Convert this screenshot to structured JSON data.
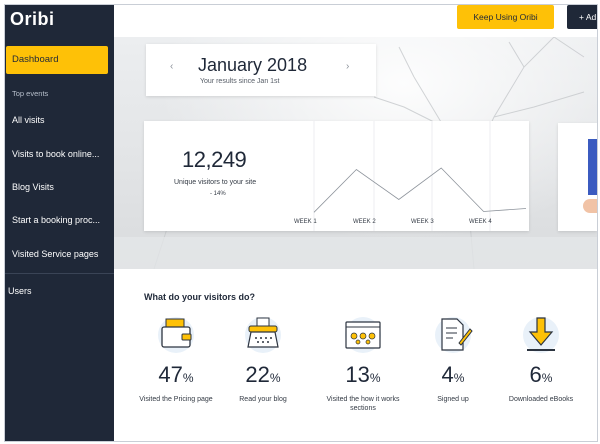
{
  "app": {
    "logo": "Oribi"
  },
  "sidebar": {
    "active": "Dashboard",
    "section_label": "Top events",
    "items": [
      "All visits",
      "Visits to book online...",
      "Blog Visits",
      "Start a booking proc...",
      "Visited Service pages"
    ],
    "bottom_item": "Users"
  },
  "topbar": {
    "keep_label": "Keep Using Oribi",
    "add_label": "+ Ad"
  },
  "month_card": {
    "prev_icon": "‹",
    "next_icon": "›",
    "title": "January 2018",
    "subtitle": "Your results since Jan 1st"
  },
  "stats": {
    "value": "12,249",
    "label": "Unique visitors to your site",
    "change": "- 14%",
    "weeks": [
      "WEEK 1",
      "WEEK 2",
      "WEEK 3",
      "WEEK 4"
    ],
    "trend": [
      0.05,
      0.62,
      0.22,
      0.64,
      0.06,
      0.1
    ]
  },
  "activities": {
    "title": "What do your visitors do?",
    "items": [
      {
        "icon": "wallet-icon",
        "pct": "47",
        "unit": "%",
        "label": "Visited the Pricing page"
      },
      {
        "icon": "typewriter-icon",
        "pct": "22",
        "unit": "%",
        "label": "Read your blog"
      },
      {
        "icon": "browser-window-icon",
        "pct": "13",
        "unit": "%",
        "label": "Visited the how it works sections"
      },
      {
        "icon": "signup-form-icon",
        "pct": "4",
        "unit": "%",
        "label": "Signed up"
      },
      {
        "icon": "download-icon",
        "pct": "6",
        "unit": "%",
        "label": "Downloaded eBooks"
      }
    ]
  },
  "colors": {
    "sidebar_bg": "#1f2838",
    "accent": "#fec107",
    "text_dark": "#1f2838"
  }
}
